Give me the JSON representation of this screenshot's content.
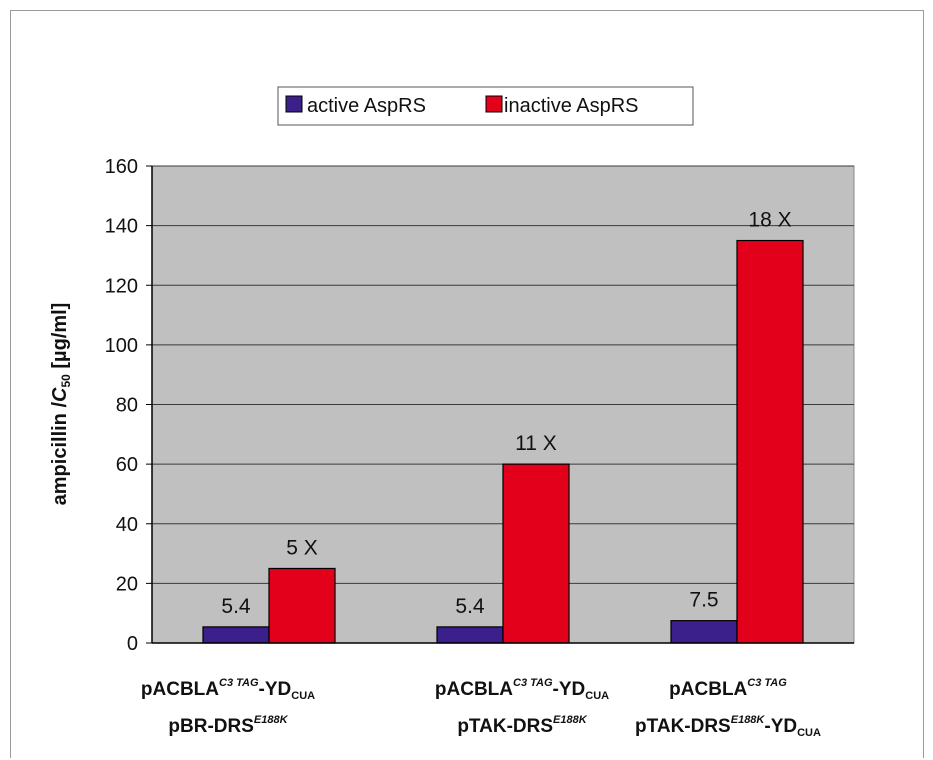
{
  "chart_data": {
    "type": "bar",
    "title": "",
    "ylabel": "ampicillin IC50 [µg/ml]",
    "ylabel_parts": {
      "pre": "ampicillin /",
      "ital": "C",
      "sub": "50",
      "post": " [µg/ml]"
    },
    "ylim": [
      0,
      160
    ],
    "yticks": [
      "0",
      "20",
      "40",
      "60",
      "80",
      "100",
      "120",
      "140",
      "160"
    ],
    "grid": true,
    "legend_position": "top",
    "categories": [
      {
        "line1": {
          "base": "pACBLA",
          "sup": "C3 TAG",
          "suffix": "-YD",
          "sub": "CUA"
        },
        "line2": {
          "base": "pBR-DRS",
          "sup": "E188K",
          "suffix": "",
          "sub": ""
        }
      },
      {
        "line1": {
          "base": "pACBLA",
          "sup": "C3 TAG",
          "suffix": "-YD",
          "sub": "CUA"
        },
        "line2": {
          "base": "pTAK-DRS",
          "sup": "E188K",
          "suffix": "",
          "sub": ""
        }
      },
      {
        "line1": {
          "base": "pACBLA",
          "sup": "C3 TAG",
          "suffix": "",
          "sub": ""
        },
        "line2": {
          "base": "pTAK-DRS",
          "sup": "E188K",
          "suffix": "-YD",
          "sub": "CUA"
        }
      }
    ],
    "series": [
      {
        "name": "active AspRS",
        "color": "#3b1f8a",
        "values": [
          5.4,
          5.4,
          7.5
        ],
        "labels": [
          "5.4",
          "5.4",
          "7.5"
        ]
      },
      {
        "name": "inactive AspRS",
        "color": "#e3001b",
        "values": [
          25,
          60,
          135
        ],
        "labels": [
          "5 X",
          "11 X",
          "18 X"
        ]
      }
    ],
    "plot_background": "#c0c0c0"
  }
}
